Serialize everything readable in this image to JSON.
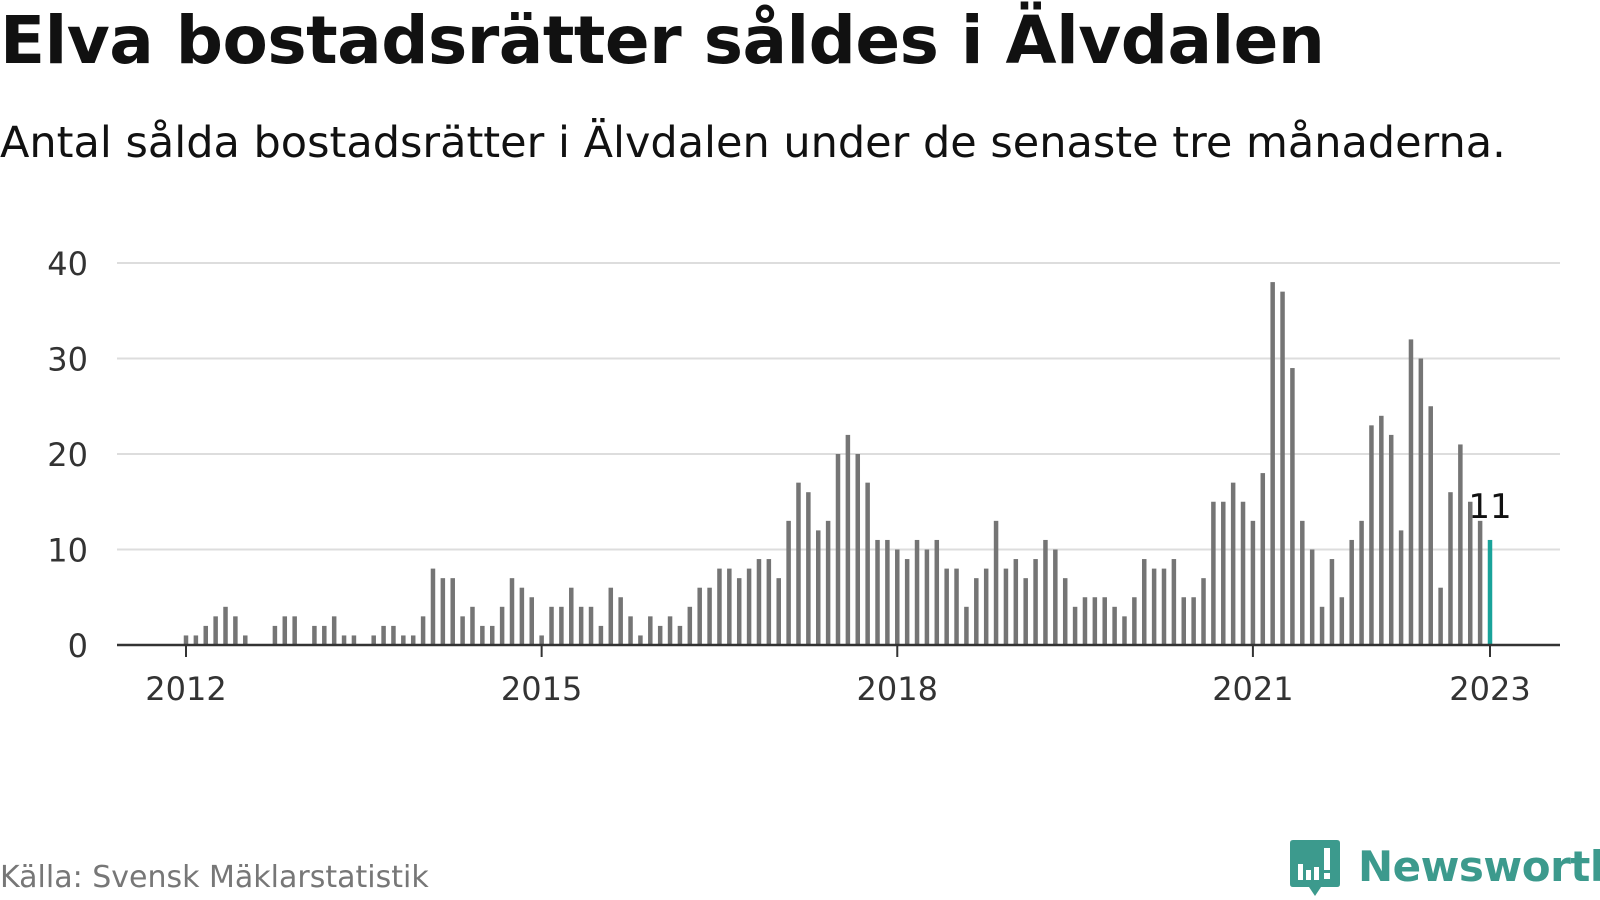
{
  "title": "Elva bostadsrätter såldes i Älvdalen",
  "subtitle": "Antal sålda bostadsrätter i Älvdalen under de senaste tre månaderna.",
  "source": "Källa: Svensk Mäklarstatistik",
  "brand": {
    "name": "Newsworthy",
    "icon": "newsworthy-logo-icon",
    "color": "#3c9a8d"
  },
  "colors": {
    "bar": "#757575",
    "highlight": "#19a39a",
    "grid": "#dddddd",
    "axis": "#333333"
  },
  "chart_data": {
    "type": "bar",
    "title": "Elva bostadsrätter såldes i Älvdalen",
    "xlabel": "",
    "ylabel": "",
    "ylim": [
      0,
      40
    ],
    "yticks": [
      0,
      10,
      20,
      30,
      40
    ],
    "xticks": [
      {
        "label": "2012",
        "date": "2012-01"
      },
      {
        "label": "2015",
        "date": "2015-01"
      },
      {
        "label": "2018",
        "date": "2018-01"
      },
      {
        "label": "2021",
        "date": "2021-01"
      },
      {
        "label": "2023",
        "date": "2023-01"
      }
    ],
    "grid": true,
    "highlight": {
      "date": "2023-01",
      "value": 11,
      "label": "11"
    },
    "x": [
      "2012-01",
      "2012-02",
      "2012-03",
      "2012-04",
      "2012-05",
      "2012-06",
      "2012-07",
      "2012-08",
      "2012-09",
      "2012-10",
      "2012-11",
      "2012-12",
      "2013-01",
      "2013-02",
      "2013-03",
      "2013-04",
      "2013-05",
      "2013-06",
      "2013-07",
      "2013-08",
      "2013-09",
      "2013-10",
      "2013-11",
      "2013-12",
      "2014-01",
      "2014-02",
      "2014-03",
      "2014-04",
      "2014-05",
      "2014-06",
      "2014-07",
      "2014-08",
      "2014-09",
      "2014-10",
      "2014-11",
      "2014-12",
      "2015-01",
      "2015-02",
      "2015-03",
      "2015-04",
      "2015-05",
      "2015-06",
      "2015-07",
      "2015-08",
      "2015-09",
      "2015-10",
      "2015-11",
      "2015-12",
      "2016-01",
      "2016-02",
      "2016-03",
      "2016-04",
      "2016-05",
      "2016-06",
      "2016-07",
      "2016-08",
      "2016-09",
      "2016-10",
      "2016-11",
      "2016-12",
      "2017-01",
      "2017-02",
      "2017-03",
      "2017-04",
      "2017-05",
      "2017-06",
      "2017-07",
      "2017-08",
      "2017-09",
      "2017-10",
      "2017-11",
      "2017-12",
      "2018-01",
      "2018-02",
      "2018-03",
      "2018-04",
      "2018-05",
      "2018-06",
      "2018-07",
      "2018-08",
      "2018-09",
      "2018-10",
      "2018-11",
      "2018-12",
      "2019-01",
      "2019-02",
      "2019-03",
      "2019-04",
      "2019-05",
      "2019-06",
      "2019-07",
      "2019-08",
      "2019-09",
      "2019-10",
      "2019-11",
      "2019-12",
      "2020-01",
      "2020-02",
      "2020-03",
      "2020-04",
      "2020-05",
      "2020-06",
      "2020-07",
      "2020-08",
      "2020-09",
      "2020-10",
      "2020-11",
      "2020-12",
      "2021-01",
      "2021-02",
      "2021-03",
      "2021-04",
      "2021-05",
      "2021-06",
      "2021-07",
      "2021-08",
      "2021-09",
      "2021-10",
      "2021-11",
      "2021-12",
      "2022-01",
      "2022-02",
      "2022-03",
      "2022-04",
      "2022-05",
      "2022-06",
      "2022-07",
      "2022-08",
      "2022-09",
      "2022-10",
      "2022-11",
      "2022-12",
      "2023-01"
    ],
    "values": [
      1,
      1,
      2,
      3,
      4,
      3,
      1,
      0,
      0,
      2,
      3,
      3,
      0,
      2,
      2,
      3,
      1,
      1,
      0,
      1,
      2,
      2,
      1,
      1,
      3,
      8,
      7,
      7,
      3,
      4,
      2,
      2,
      4,
      7,
      6,
      5,
      1,
      4,
      4,
      6,
      4,
      4,
      2,
      6,
      5,
      3,
      1,
      3,
      2,
      3,
      2,
      4,
      6,
      6,
      8,
      8,
      7,
      8,
      9,
      9,
      7,
      13,
      17,
      16,
      12,
      13,
      20,
      22,
      20,
      17,
      11,
      11,
      10,
      9,
      11,
      10,
      11,
      8,
      8,
      4,
      7,
      8,
      13,
      8,
      9,
      7,
      9,
      11,
      10,
      7,
      4,
      5,
      5,
      5,
      4,
      3,
      5,
      9,
      8,
      8,
      9,
      5,
      5,
      7,
      15,
      15,
      17,
      15,
      13,
      18,
      38,
      37,
      29,
      13,
      10,
      4,
      9,
      5,
      11,
      13,
      23,
      24,
      22,
      12,
      32,
      30,
      25,
      6,
      16,
      21,
      15,
      13,
      11
    ]
  }
}
